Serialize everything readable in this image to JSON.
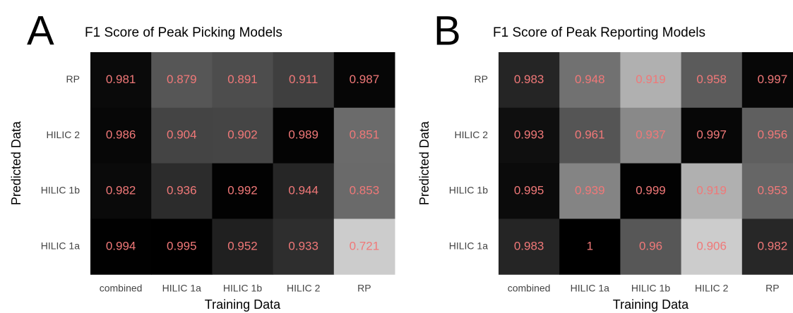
{
  "chart_data": [
    {
      "type": "heatmap",
      "panel_label": "A",
      "title": "F1 Score of Peak Picking Models",
      "x_label": "Training Data",
      "y_label": "Predicted Data",
      "x_categories": [
        "combined",
        "HILIC 1a",
        "HILIC 1b",
        "HILIC 2",
        "RP"
      ],
      "y_categories": [
        "RP",
        "HILIC 2",
        "HILIC 1b",
        "HILIC 1a"
      ],
      "values": [
        [
          0.981,
          0.879,
          0.891,
          0.911,
          0.987
        ],
        [
          0.986,
          0.904,
          0.902,
          0.989,
          0.851
        ],
        [
          0.982,
          0.936,
          0.992,
          0.944,
          0.853
        ],
        [
          0.994,
          0.995,
          0.952,
          0.933,
          0.721
        ]
      ],
      "colors": [
        "#000000",
        "#cccccc"
      ],
      "label_color": "#f07878"
    },
    {
      "type": "heatmap",
      "panel_label": "B",
      "title": "F1 Score of Peak Reporting Models",
      "x_label": "Training Data",
      "y_label": "Predicted Data",
      "x_categories": [
        "combined",
        "HILIC 1a",
        "HILIC 1b",
        "HILIC 2",
        "RP"
      ],
      "y_categories": [
        "RP",
        "HILIC 2",
        "HILIC 1b",
        "HILIC 1a"
      ],
      "values": [
        [
          0.983,
          0.948,
          0.919,
          0.958,
          0.997
        ],
        [
          0.993,
          0.961,
          0.937,
          0.997,
          0.956
        ],
        [
          0.995,
          0.939,
          0.999,
          0.919,
          0.953
        ],
        [
          0.983,
          1,
          0.96,
          0.906,
          0.982
        ]
      ],
      "colors": [
        "#000000",
        "#cccccc"
      ],
      "label_color": "#f07878"
    }
  ]
}
